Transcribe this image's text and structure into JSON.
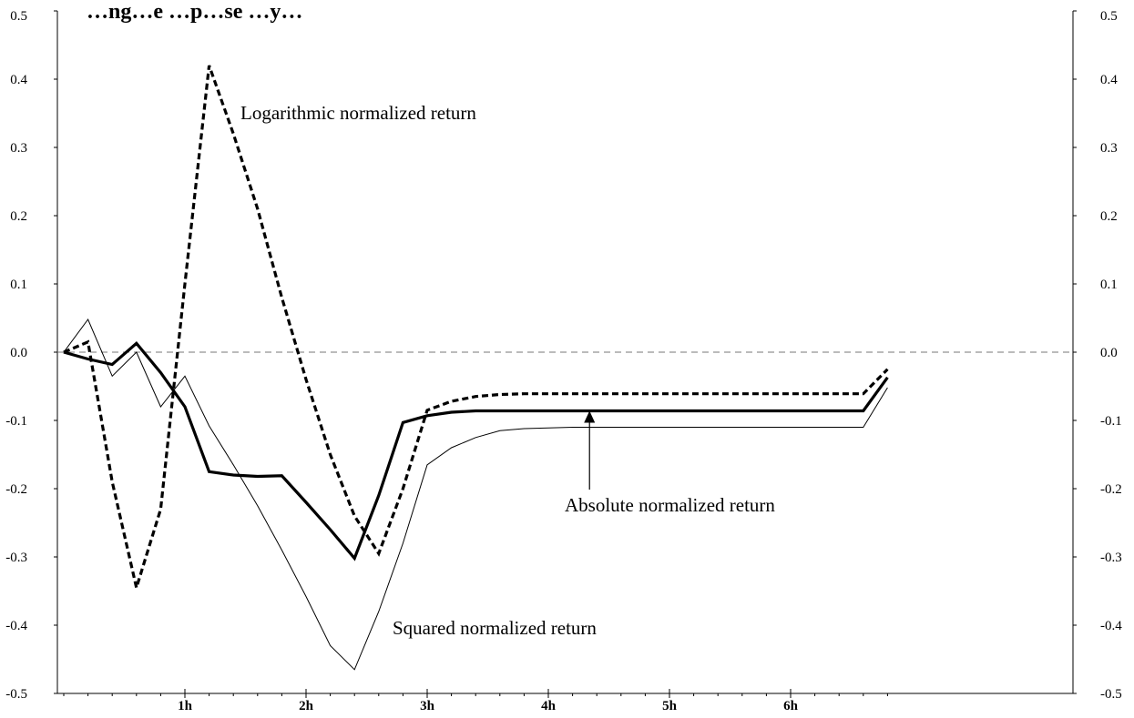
{
  "chart_data": {
    "type": "line",
    "title": "…ng…e …p…se …y…",
    "xlabel": "",
    "ylabel": "",
    "x_tick_labels": [
      "1h",
      "2h",
      "3h",
      "4h",
      "5h",
      "6h"
    ],
    "x_ticks_at_step": [
      5,
      10,
      15,
      20,
      25,
      30
    ],
    "ylim": [
      -0.5,
      0.5
    ],
    "y_ticks": [
      "-0.5",
      "-0.4",
      "-0.3",
      "-0.2",
      "-0.1",
      "0.0",
      "0.1",
      "0.2",
      "0.3",
      "0.4",
      "0.5"
    ],
    "zero_line": true,
    "grid": false,
    "legend": "none",
    "x": [
      0,
      1,
      2,
      3,
      4,
      5,
      6,
      7,
      8,
      9,
      10,
      11,
      12,
      13,
      14,
      15,
      16,
      17,
      18,
      19,
      20,
      21,
      22,
      23,
      24,
      25,
      26,
      27,
      28,
      29,
      30,
      31,
      32,
      33,
      34
    ],
    "series": [
      {
        "name": "Logarithmic normalized return",
        "style": "dashed-bold",
        "values": [
          0.0,
          0.015,
          -0.19,
          -0.345,
          -0.23,
          0.1,
          0.42,
          0.32,
          0.21,
          0.08,
          -0.04,
          -0.15,
          -0.24,
          -0.295,
          -0.2,
          -0.085,
          -0.072,
          -0.065,
          -0.062,
          -0.061,
          -0.061,
          -0.061,
          -0.061,
          -0.061,
          -0.061,
          -0.061,
          -0.061,
          -0.061,
          -0.061,
          -0.061,
          -0.061,
          -0.061,
          -0.061,
          -0.061,
          -0.025
        ]
      },
      {
        "name": "Absolute normalized return",
        "style": "solid-bold",
        "values": [
          0.0,
          -0.01,
          -0.018,
          0.013,
          -0.03,
          -0.08,
          -0.175,
          -0.18,
          -0.182,
          -0.181,
          -0.22,
          -0.26,
          -0.302,
          -0.21,
          -0.103,
          -0.093,
          -0.088,
          -0.086,
          -0.086,
          -0.086,
          -0.086,
          -0.086,
          -0.086,
          -0.086,
          -0.086,
          -0.086,
          -0.086,
          -0.086,
          -0.086,
          -0.086,
          -0.086,
          -0.086,
          -0.086,
          -0.086,
          -0.037
        ]
      },
      {
        "name": "Squared normalized return",
        "style": "solid-thin",
        "values": [
          0.0,
          0.048,
          -0.035,
          0.0,
          -0.08,
          -0.035,
          -0.108,
          -0.165,
          -0.225,
          -0.29,
          -0.358,
          -0.43,
          -0.465,
          -0.38,
          -0.28,
          -0.165,
          -0.14,
          -0.125,
          -0.115,
          -0.112,
          -0.111,
          -0.11,
          -0.11,
          -0.11,
          -0.11,
          -0.11,
          -0.11,
          -0.11,
          -0.11,
          -0.11,
          -0.11,
          -0.11,
          -0.11,
          -0.11,
          -0.052
        ]
      }
    ],
    "annotations": [
      {
        "text": "Logarithmic normalized return",
        "series": 0
      },
      {
        "text": "Absolute normalized return",
        "series": 1,
        "arrow": true,
        "arrow_target": {
          "x": 21.7,
          "y": -0.086
        }
      },
      {
        "text": "Squared normalized return",
        "series": 2
      }
    ]
  }
}
